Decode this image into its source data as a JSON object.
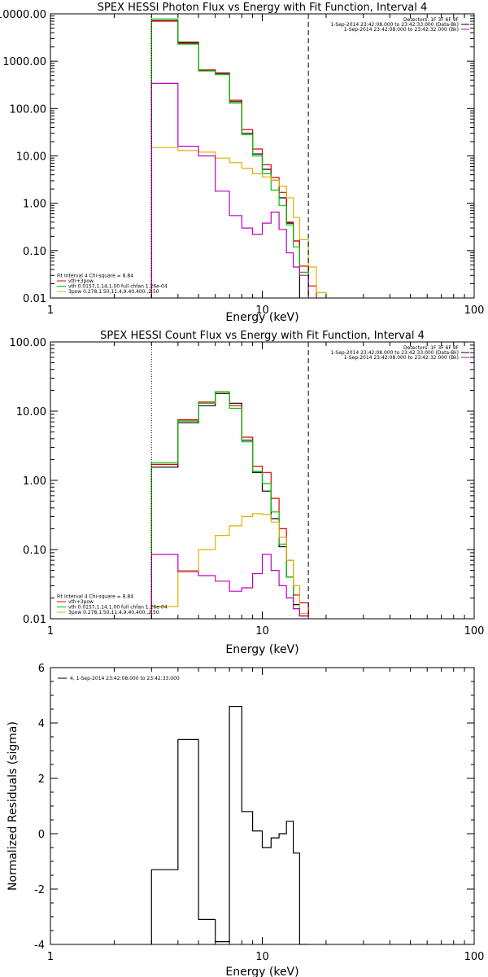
{
  "chart_data": [
    {
      "type": "line",
      "title": "SPEX HESSI Photon Flux vs Energy with Fit Function, Interval 4",
      "xlabel": "Energy (keV)",
      "ylabel": "",
      "xscale": "log",
      "yscale": "log",
      "xlim": [
        1,
        100
      ],
      "ylim": [
        0.01,
        10000
      ],
      "x_tick_labels": [
        "1",
        "10",
        "100"
      ],
      "y_tick_labels": [
        "0.01",
        "0.10",
        "1.00",
        "10.00",
        "100.00",
        "1000.00",
        "10000.00"
      ],
      "grid": false,
      "legend_top_right": [
        {
          "text": "Detectors: 1F 3F 6F 9F",
          "color": "#000000"
        },
        {
          "text": "1-Sep-2014 23:42:08.000 to 23:42:33.000 (Data-Bk)",
          "color": "#000000"
        },
        {
          "text": "1-Sep-2014 23:42:08.000 to 23:42:32.000 (Bk)",
          "color": "#c000c0"
        }
      ],
      "legend_bottom_left": [
        {
          "text": "Fit Interval  4    Chi-square = 8.84",
          "color": "#000000"
        },
        {
          "text": "vth+3pow",
          "color": "#e00000"
        },
        {
          "text": "vth 0.0157,1.14,1.00  full chfan 1.26e-04",
          "color": "#00c000"
        },
        {
          "text": "3pow 0.278,1.50,11.4,9.40,400.,2.50",
          "color": "#e0b000"
        }
      ],
      "vlines": [
        {
          "x": 3.0,
          "style": "dotted"
        },
        {
          "x": 16.5,
          "style": "dashed"
        }
      ],
      "bin_edges": [
        3.0,
        4.0,
        5.0,
        6.0,
        7.0,
        8.0,
        9.0,
        10.0,
        11.0,
        12.0,
        13.0,
        14.0,
        15.0,
        16.5,
        18.0,
        20.0
      ],
      "series": [
        {
          "color": "#000000",
          "values": [
            7200,
            2500,
            650,
            560,
            140,
            30,
            11,
            5.2,
            3.1,
            1.3,
            0.38,
            0.16
          ]
        },
        {
          "color": "#e00000",
          "values": [
            7000,
            2400,
            640,
            540,
            150,
            36,
            14,
            6.5,
            3.5,
            1.7,
            0.4,
            0.16,
            0.047,
            0.018
          ]
        },
        {
          "color": "#00c000",
          "values": [
            7800,
            2300,
            620,
            520,
            130,
            28,
            10,
            4.2,
            1.9,
            0.9,
            0.35,
            0.12,
            0.035
          ]
        },
        {
          "color": "#e0b000",
          "values": [
            15,
            13,
            12,
            9,
            7.2,
            5.5,
            4.2,
            3.6,
            3.1,
            2.3,
            1.3,
            0.5,
            0.17,
            0.045,
            0.013
          ]
        },
        {
          "color": "#c000c0",
          "values": [
            340,
            16,
            10,
            1.8,
            0.55,
            0.3,
            0.22,
            0.38,
            0.65,
            0.28,
            0.09,
            0.045,
            0.03
          ]
        }
      ]
    },
    {
      "type": "line",
      "title": "SPEX HESSI Count Flux vs Energy with Fit Function, Interval 4",
      "xlabel": "Energy (keV)",
      "ylabel": "",
      "xscale": "log",
      "yscale": "log",
      "xlim": [
        1,
        100
      ],
      "ylim": [
        0.01,
        100
      ],
      "x_tick_labels": [
        "1",
        "10",
        "100"
      ],
      "y_tick_labels": [
        "0.01",
        "0.10",
        "1.00",
        "10.00",
        "100.00"
      ],
      "grid": false,
      "legend_top_right": [
        {
          "text": "Detectors: 1F 3F 6F 9F",
          "color": "#000000"
        },
        {
          "text": "1-Sep-2014 23:42:08.000 to 23:42:33.000 (Data-Bk)",
          "color": "#000000"
        },
        {
          "text": "1-Sep-2014 23:42:08.000 to 23:42:32.000 (Bk)",
          "color": "#c000c0"
        }
      ],
      "legend_bottom_left": [
        {
          "text": "Fit Interval  4    Chi-square = 8.84",
          "color": "#000000"
        },
        {
          "text": "vth+3pow",
          "color": "#e00000"
        },
        {
          "text": "vth 0.0157,1.14,1.00  full chfan 1.26e-04",
          "color": "#00c000"
        },
        {
          "text": "3pow 0.278,1.50,11.4,9.40,400.,2.50",
          "color": "#e0b000"
        }
      ],
      "vlines": [
        {
          "x": 3.0,
          "style": "dotted"
        },
        {
          "x": 16.5,
          "style": "dashed"
        }
      ],
      "bin_edges": [
        3.0,
        4.0,
        5.0,
        6.0,
        7.0,
        8.0,
        9.0,
        10.0,
        11.0,
        12.0,
        13.0,
        14.0,
        15.0,
        16.5
      ],
      "series": [
        {
          "color": "#000000",
          "values": [
            1.55,
            6.8,
            12,
            18,
            13,
            3.8,
            1.3,
            0.7,
            0.28,
            0.11,
            0.04,
            0.016,
            0.011
          ]
        },
        {
          "color": "#e00000",
          "values": [
            1.7,
            7.5,
            13.5,
            19,
            12,
            4.2,
            1.6,
            1.3,
            0.55,
            0.2,
            0.07,
            0.022,
            0.017
          ]
        },
        {
          "color": "#00c000",
          "values": [
            1.8,
            7.2,
            13,
            19,
            11,
            3.6,
            1.35,
            0.9,
            0.35,
            0.12,
            0.04,
            0.014,
            0.011
          ]
        },
        {
          "color": "#e0b000",
          "values": [
            0.015,
            0.05,
            0.1,
            0.16,
            0.22,
            0.3,
            0.33,
            0.32,
            0.25,
            0.15,
            0.07,
            0.03,
            0.012
          ]
        },
        {
          "color": "#c000c0",
          "values": [
            0.085,
            0.048,
            0.042,
            0.035,
            0.025,
            0.028,
            0.045,
            0.085,
            0.05,
            0.03,
            0.02,
            0.014,
            0.011
          ]
        }
      ]
    },
    {
      "type": "line",
      "title": "",
      "xlabel": "Energy (keV)",
      "ylabel": "Normalized Residuals (sigma)",
      "xscale": "log",
      "yscale": "linear",
      "xlim": [
        1,
        100
      ],
      "ylim": [
        -4,
        6
      ],
      "x_tick_labels": [
        "1",
        "10",
        "100"
      ],
      "y_tick_labels": [
        "-4",
        "-2",
        "0",
        "2",
        "4",
        "6"
      ],
      "grid": false,
      "legend_top_left": [
        {
          "text": "4,  1-Sep-2014 23:42:08.000 to 23:42:33.000",
          "color": "#000000"
        }
      ],
      "bin_edges": [
        3.0,
        4.0,
        5.0,
        6.0,
        7.0,
        8.0,
        9.0,
        10.0,
        11.0,
        12.0,
        13.0,
        14.0,
        15.0,
        16.5
      ],
      "series": [
        {
          "color": "#000000",
          "values": [
            -1.3,
            3.4,
            -3.1,
            -3.9,
            4.6,
            0.8,
            0.1,
            -0.5,
            -0.15,
            0.0,
            0.45,
            -0.7,
            -4.0
          ]
        }
      ]
    }
  ]
}
